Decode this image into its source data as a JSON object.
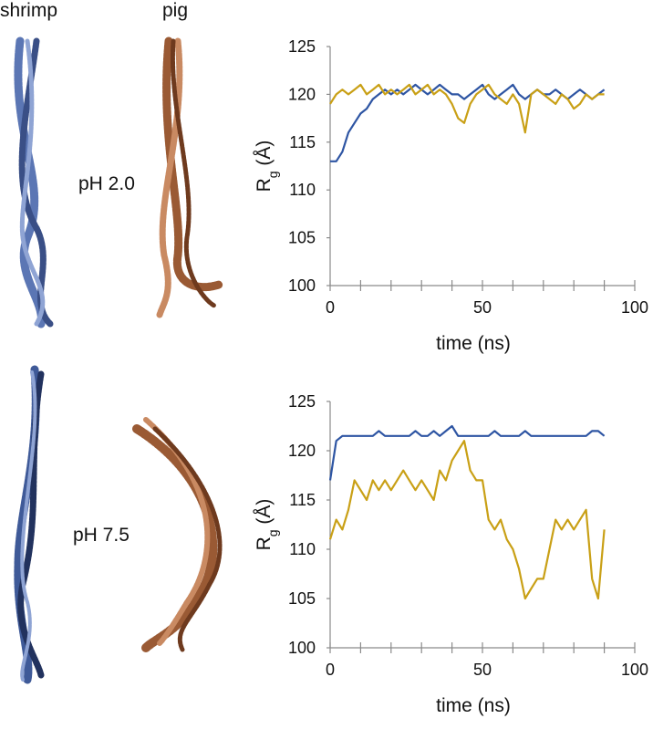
{
  "labels": {
    "shrimp": "shrimp",
    "pig": "pig",
    "ph_top": "pH 2.0",
    "ph_bottom": "pH 7.5"
  },
  "chart_data": [
    {
      "type": "line",
      "x": [
        0,
        2,
        4,
        6,
        8,
        10,
        12,
        14,
        16,
        18,
        20,
        22,
        24,
        26,
        28,
        30,
        32,
        34,
        36,
        38,
        40,
        42,
        44,
        46,
        48,
        50,
        52,
        54,
        56,
        58,
        60,
        62,
        64,
        66,
        68,
        70,
        72,
        74,
        76,
        78,
        80,
        82,
        84,
        86,
        88,
        90
      ],
      "series": [
        {
          "color": "#2e55a3",
          "values": [
            113,
            113,
            114,
            116,
            117,
            118,
            118.5,
            119.5,
            120,
            120.5,
            120,
            120.5,
            120,
            120.5,
            121,
            120.5,
            120,
            120.5,
            121,
            120.5,
            120,
            120,
            119.5,
            120,
            120.5,
            121,
            120,
            119.5,
            120,
            120.5,
            121,
            120,
            119.5,
            120,
            120.5,
            120,
            120,
            120.5,
            120,
            119.5,
            120,
            120.5,
            120,
            119.5,
            120,
            120.5
          ]
        },
        {
          "color": "#c9a016",
          "values": [
            119,
            120,
            120.5,
            120,
            120.5,
            121,
            120,
            120.5,
            121,
            120,
            120.5,
            120,
            120.5,
            121,
            120,
            120.5,
            121,
            120,
            120.5,
            120,
            119,
            117.5,
            117,
            119,
            120,
            120.5,
            121,
            120,
            119.5,
            119,
            120,
            119,
            116,
            120,
            120.5,
            120,
            119.5,
            119,
            120,
            119.5,
            118.5,
            119,
            120,
            119.5,
            120,
            120
          ]
        }
      ],
      "xlim": [
        0,
        100
      ],
      "ylim": [
        100,
        125
      ],
      "xticks": [
        0,
        50,
        100
      ],
      "yticks": [
        100,
        105,
        110,
        115,
        120,
        125
      ],
      "x_minor_ticks": [
        0,
        10,
        20,
        30,
        40,
        50,
        60,
        70,
        80,
        90,
        100
      ],
      "xlabel": "time (ns)",
      "ylabel": [
        "R",
        "g",
        " (Å)"
      ]
    },
    {
      "type": "line",
      "x": [
        0,
        2,
        4,
        6,
        8,
        10,
        12,
        14,
        16,
        18,
        20,
        22,
        24,
        26,
        28,
        30,
        32,
        34,
        36,
        38,
        40,
        42,
        44,
        46,
        48,
        50,
        52,
        54,
        56,
        58,
        60,
        62,
        64,
        66,
        68,
        70,
        72,
        74,
        76,
        78,
        80,
        82,
        84,
        86,
        88,
        90
      ],
      "series": [
        {
          "color": "#2e55a3",
          "values": [
            117,
            121,
            121.5,
            121.5,
            121.5,
            121.5,
            121.5,
            121.5,
            122,
            121.5,
            121.5,
            121.5,
            121.5,
            121.5,
            122,
            121.5,
            121.5,
            122,
            121.5,
            122,
            122.5,
            121.5,
            121.5,
            121.5,
            121.5,
            121.5,
            121.5,
            122,
            121.5,
            121.5,
            121.5,
            121.5,
            122,
            121.5,
            121.5,
            121.5,
            121.5,
            121.5,
            121.5,
            121.5,
            121.5,
            121.5,
            121.5,
            122,
            122,
            121.5
          ]
        },
        {
          "color": "#c9a016",
          "values": [
            111,
            113,
            112,
            114,
            117,
            116,
            115,
            117,
            116,
            117,
            116,
            117,
            118,
            117,
            116,
            117,
            116,
            115,
            118,
            117,
            119,
            120,
            121,
            118,
            117,
            117,
            113,
            112,
            113,
            111,
            110,
            108,
            105,
            106,
            107,
            107,
            110,
            113,
            112,
            113,
            112,
            113,
            114,
            107,
            105,
            112
          ]
        }
      ],
      "xlim": [
        0,
        100
      ],
      "ylim": [
        100,
        125
      ],
      "xticks": [
        0,
        50,
        100
      ],
      "yticks": [
        100,
        105,
        110,
        115,
        120,
        125
      ],
      "x_minor_ticks": [
        0,
        10,
        20,
        30,
        40,
        50,
        60,
        70,
        80,
        90,
        100
      ],
      "xlabel": "time (ns)",
      "ylabel": [
        "R",
        "g",
        " (Å)"
      ]
    }
  ]
}
